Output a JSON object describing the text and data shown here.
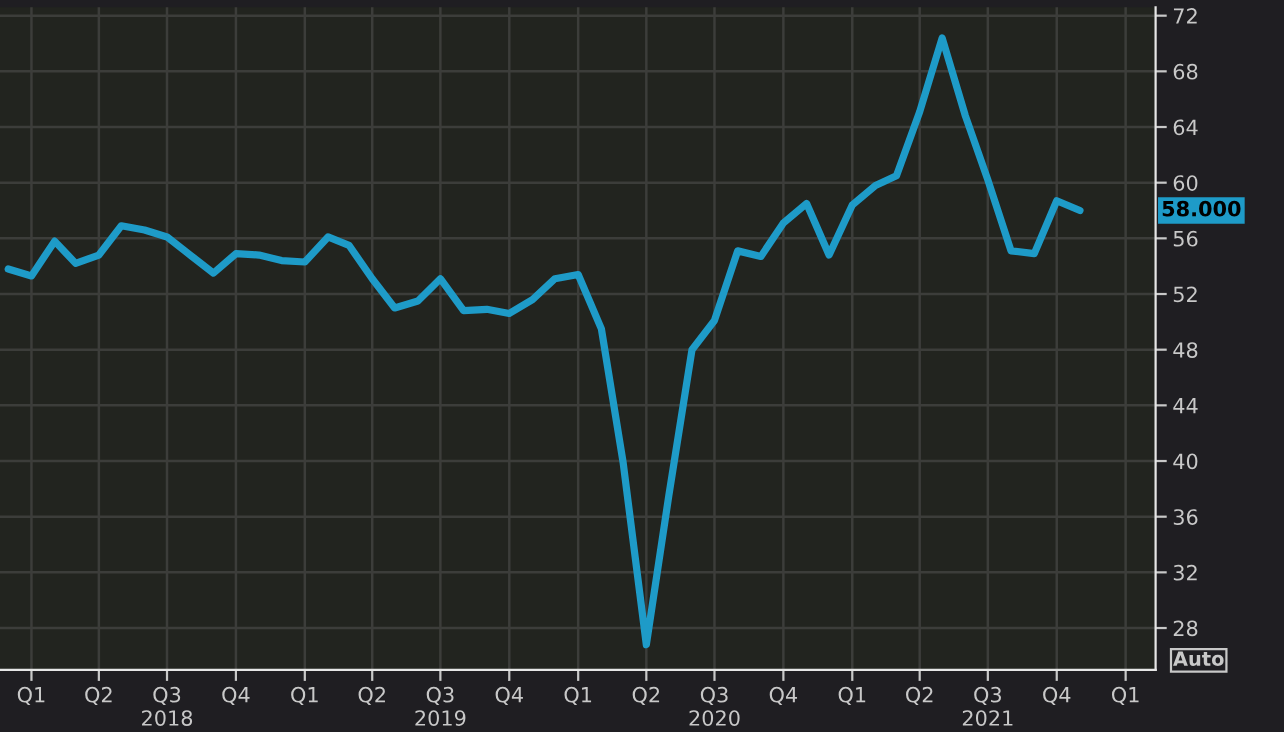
{
  "chart_data": {
    "type": "line",
    "x": [
      "2017-12",
      "2018-01",
      "2018-02",
      "2018-03",
      "2018-04",
      "2018-05",
      "2018-06",
      "2018-07",
      "2018-08",
      "2018-09",
      "2018-10",
      "2018-11",
      "2018-12",
      "2019-01",
      "2019-02",
      "2019-03",
      "2019-04",
      "2019-05",
      "2019-06",
      "2019-07",
      "2019-08",
      "2019-09",
      "2019-10",
      "2019-11",
      "2019-12",
      "2020-01",
      "2020-02",
      "2020-03",
      "2020-04",
      "2020-05",
      "2020-06",
      "2020-07",
      "2020-08",
      "2020-09",
      "2020-10",
      "2020-11",
      "2020-12",
      "2021-01",
      "2021-02",
      "2021-03",
      "2021-04",
      "2021-05",
      "2021-06",
      "2021-07",
      "2021-08",
      "2021-09",
      "2021-10",
      "2021-11"
    ],
    "series": [
      {
        "color": "#1e9bc8",
        "values": [
          53.8,
          53.3,
          55.8,
          54.2,
          54.8,
          56.9,
          56.6,
          56.1,
          54.8,
          53.5,
          54.9,
          54.8,
          54.4,
          54.3,
          56.1,
          55.5,
          53.1,
          51.0,
          51.5,
          53.1,
          50.8,
          50.9,
          50.6,
          51.6,
          53.1,
          53.4,
          49.5,
          39.9,
          26.8,
          37.5,
          48.0,
          50.1,
          55.1,
          54.7,
          57.1,
          58.5,
          54.8,
          58.4,
          59.8,
          60.5,
          65.1,
          70.4,
          64.8,
          60.2,
          55.1,
          54.9,
          58.7,
          58.0
        ]
      }
    ],
    "xlim": [
      "2017-11-20",
      "2022-02-10"
    ],
    "ylim": [
      25,
      72.6
    ],
    "yticks": [
      28,
      32,
      36,
      40,
      44,
      48,
      52,
      56,
      60,
      64,
      68,
      72
    ],
    "xticks": [
      {
        "value": "2018-01-01",
        "label": "Q1"
      },
      {
        "value": "2018-04-01",
        "label": "Q2"
      },
      {
        "value": "2018-07-01",
        "label": "Q3\n2018"
      },
      {
        "value": "2018-10-01",
        "label": "Q4"
      },
      {
        "value": "2019-01-01",
        "label": "Q1"
      },
      {
        "value": "2019-04-01",
        "label": "Q2"
      },
      {
        "value": "2019-07-01",
        "label": "Q3\n2019"
      },
      {
        "value": "2019-10-01",
        "label": "Q4"
      },
      {
        "value": "2020-01-01",
        "label": "Q1"
      },
      {
        "value": "2020-04-01",
        "label": "Q2"
      },
      {
        "value": "2020-07-01",
        "label": "Q3\n2020"
      },
      {
        "value": "2020-10-01",
        "label": "Q4"
      },
      {
        "value": "2021-01-01",
        "label": "Q1"
      },
      {
        "value": "2021-04-01",
        "label": "Q2"
      },
      {
        "value": "2021-07-01",
        "label": "Q3\n2021"
      },
      {
        "value": "2021-10-01",
        "label": "Q4"
      },
      {
        "value": "2022-01-01",
        "label": "Q1"
      }
    ],
    "grid": true,
    "line_style": "solid",
    "annotations": [
      "58.000",
      "Auto"
    ]
  }
}
